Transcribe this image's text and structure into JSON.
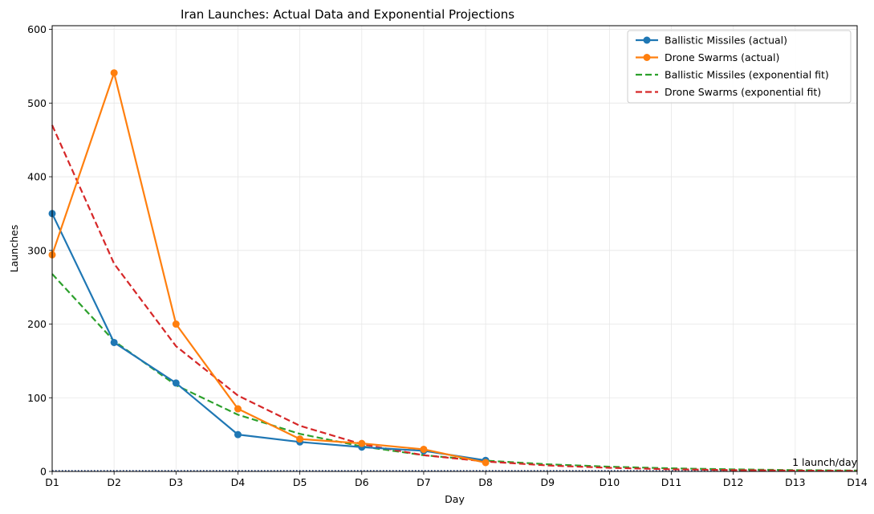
{
  "chart_data": {
    "type": "line",
    "title": "Iran Launches: Actual Data and Exponential Projections",
    "xlabel": "Day",
    "ylabel": "Launches",
    "categories": [
      "D1",
      "D2",
      "D3",
      "D4",
      "D5",
      "D6",
      "D7",
      "D8",
      "D9",
      "D10",
      "D11",
      "D12",
      "D13",
      "D14"
    ],
    "xlim": [
      1,
      14
    ],
    "ylim": [
      0,
      605
    ],
    "yticks": [
      0,
      100,
      200,
      300,
      400,
      500,
      600
    ],
    "grid": true,
    "legend_position": "top-right",
    "series": [
      {
        "name": "Ballistic Missiles (actual)",
        "color": "#1f77b4",
        "style": "solid",
        "marker": "circle",
        "x": [
          1,
          2,
          3,
          4,
          5,
          6,
          7,
          8
        ],
        "values": [
          350,
          175,
          120,
          50,
          40,
          33,
          28,
          15
        ]
      },
      {
        "name": "Drone Swarms (actual)",
        "color": "#ff7f0e",
        "style": "solid",
        "marker": "circle",
        "x": [
          1,
          2,
          3,
          4,
          5,
          6,
          7,
          8
        ],
        "values": [
          294,
          541,
          200,
          85,
          44,
          38,
          30,
          12
        ]
      },
      {
        "name": "Ballistic Missiles (exponential fit)",
        "color": "#2ca02c",
        "style": "dashed",
        "marker": "none",
        "x": [
          1,
          2,
          3,
          4,
          5,
          6,
          7,
          8,
          9,
          10,
          11,
          12,
          13,
          14
        ],
        "values": [
          268,
          177,
          117,
          77,
          51,
          34,
          22,
          14.7,
          9.7,
          6.4,
          4.2,
          2.8,
          1.8,
          1.2
        ]
      },
      {
        "name": "Drone Swarms (exponential fit)",
        "color": "#d62728",
        "style": "dashed",
        "marker": "none",
        "x": [
          1,
          2,
          3,
          4,
          5,
          6,
          7,
          8,
          9,
          10,
          11,
          12,
          13,
          14
        ],
        "values": [
          470,
          282,
          170,
          103,
          62,
          37,
          22,
          13.5,
          8.1,
          4.9,
          2.9,
          1.8,
          1.1,
          0.65
        ]
      }
    ],
    "reference_line": {
      "y": 1,
      "color": "#1f3f7f",
      "style": "dotted",
      "label": "1 launch/day"
    }
  }
}
